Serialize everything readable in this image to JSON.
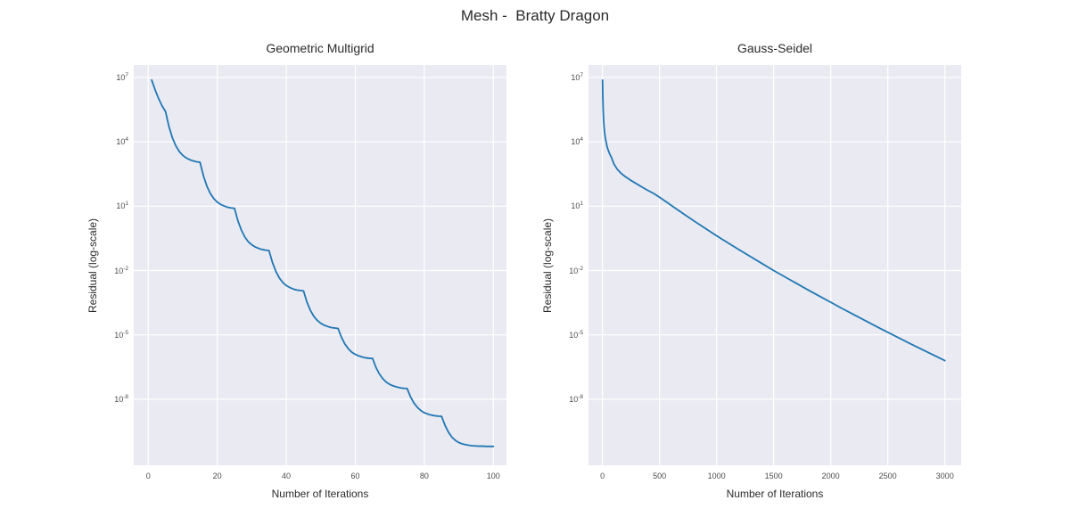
{
  "figure": {
    "title": "Mesh -  Bratty Dragon"
  },
  "style": {
    "figure_background": "#ffffff",
    "axes_background": "#eaeaf2",
    "grid_color": "#ffffff",
    "line_color": "#1f77b4",
    "title_color": "#2b2b2b",
    "tick_label_color": "#4c4c4c"
  },
  "chart_data": [
    {
      "type": "line",
      "title": "Geometric Multigrid",
      "xlabel": "Number of Iterations",
      "ylabel": "Residual (log-scale)",
      "y_scale": "log10",
      "y_units": "points are [iteration, log10(residual)]",
      "grid": true,
      "legend": false,
      "x_ticks": [
        0,
        20,
        40,
        60,
        80,
        100
      ],
      "y_tick_base": "10",
      "y_tick_exponents": [
        7,
        4,
        1,
        -2,
        -5,
        -8
      ],
      "xlim": [
        -4.2,
        103.8
      ],
      "ylim_log": [
        -11.08,
        7.58
      ],
      "series": [
        {
          "name": "residual",
          "points": [
            [
              1,
              6.88
            ],
            [
              2,
              6.42
            ],
            [
              3,
              6.02
            ],
            [
              4,
              5.68
            ],
            [
              5,
              5.42
            ],
            [
              6,
              4.71
            ],
            [
              7,
              4.19
            ],
            [
              8,
              3.81
            ],
            [
              9,
              3.55
            ],
            [
              10,
              3.37
            ],
            [
              11,
              3.25
            ],
            [
              12,
              3.17
            ],
            [
              13,
              3.11
            ],
            [
              14,
              3.07
            ],
            [
              15,
              3.05
            ],
            [
              16,
              2.41
            ],
            [
              17,
              1.93
            ],
            [
              18,
              1.59
            ],
            [
              19,
              1.35
            ],
            [
              20,
              1.19
            ],
            [
              21,
              1.08
            ],
            [
              22,
              1.01
            ],
            [
              23,
              0.95
            ],
            [
              24,
              0.92
            ],
            [
              25,
              0.9
            ],
            [
              26,
              0.31
            ],
            [
              27,
              -0.12
            ],
            [
              28,
              -0.44
            ],
            [
              29,
              -0.66
            ],
            [
              30,
              -0.8
            ],
            [
              31,
              -0.9
            ],
            [
              32,
              -0.97
            ],
            [
              33,
              -1.02
            ],
            [
              34,
              -1.05
            ],
            [
              35,
              -1.07
            ],
            [
              36,
              -1.63
            ],
            [
              37,
              -2.05
            ],
            [
              38,
              -2.35
            ],
            [
              39,
              -2.56
            ],
            [
              40,
              -2.7
            ],
            [
              41,
              -2.79
            ],
            [
              42,
              -2.86
            ],
            [
              43,
              -2.91
            ],
            [
              44,
              -2.93
            ],
            [
              45,
              -2.95
            ],
            [
              46,
              -3.48
            ],
            [
              47,
              -3.86
            ],
            [
              48,
              -4.14
            ],
            [
              49,
              -4.33
            ],
            [
              50,
              -4.46
            ],
            [
              51,
              -4.55
            ],
            [
              52,
              -4.61
            ],
            [
              53,
              -4.66
            ],
            [
              54,
              -4.68
            ],
            [
              55,
              -4.7
            ],
            [
              56,
              -5.12
            ],
            [
              57,
              -5.43
            ],
            [
              58,
              -5.65
            ],
            [
              59,
              -5.81
            ],
            [
              60,
              -5.91
            ],
            [
              61,
              -5.98
            ],
            [
              62,
              -6.03
            ],
            [
              63,
              -6.07
            ],
            [
              64,
              -6.09
            ],
            [
              65,
              -6.1
            ],
            [
              66,
              -6.52
            ],
            [
              67,
              -6.83
            ],
            [
              68,
              -7.05
            ],
            [
              69,
              -7.21
            ],
            [
              70,
              -7.31
            ],
            [
              71,
              -7.38
            ],
            [
              72,
              -7.43
            ],
            [
              73,
              -7.47
            ],
            [
              74,
              -7.49
            ],
            [
              75,
              -7.5
            ],
            [
              76,
              -7.89
            ],
            [
              77,
              -8.18
            ],
            [
              78,
              -8.38
            ],
            [
              79,
              -8.53
            ],
            [
              80,
              -8.63
            ],
            [
              81,
              -8.69
            ],
            [
              82,
              -8.74
            ],
            [
              83,
              -8.77
            ],
            [
              84,
              -8.79
            ],
            [
              85,
              -8.8
            ],
            [
              86,
              -9.22
            ],
            [
              87,
              -9.54
            ],
            [
              88,
              -9.77
            ],
            [
              89,
              -9.92
            ],
            [
              90,
              -10.02
            ],
            [
              91,
              -10.08
            ],
            [
              92,
              -10.12
            ],
            [
              93,
              -10.15
            ],
            [
              94,
              -10.17
            ],
            [
              95,
              -10.18
            ],
            [
              96,
              -10.19
            ],
            [
              97,
              -10.19
            ],
            [
              98,
              -10.2
            ],
            [
              99,
              -10.2
            ],
            [
              100,
              -10.2
            ]
          ]
        }
      ]
    },
    {
      "type": "line",
      "title": "Gauss-Seidel",
      "xlabel": "Number of Iterations",
      "ylabel": "Residual (log-scale)",
      "y_scale": "log10",
      "y_units": "points are [iteration, log10(residual)]",
      "grid": true,
      "legend": false,
      "x_ticks": [
        0,
        500,
        1000,
        1500,
        2000,
        2500,
        3000
      ],
      "y_tick_base": "10",
      "y_tick_exponents": [
        7,
        4,
        1,
        -2,
        -5,
        -8
      ],
      "xlim": [
        -122,
        3143
      ],
      "ylim_log": [
        -11.08,
        7.58
      ],
      "series": [
        {
          "name": "residual",
          "points": [
            [
              1,
              6.88
            ],
            [
              2,
              6.55
            ],
            [
              3,
              6.25
            ],
            [
              4,
              6.0
            ],
            [
              6,
              5.6
            ],
            [
              8,
              5.3
            ],
            [
              10,
              5.05
            ],
            [
              14,
              4.72
            ],
            [
              18,
              4.5
            ],
            [
              24,
              4.25
            ],
            [
              30,
              4.05
            ],
            [
              40,
              3.8
            ],
            [
              50,
              3.62
            ],
            [
              65,
              3.42
            ],
            [
              80,
              3.26
            ],
            [
              100,
              2.98
            ],
            [
              130,
              2.72
            ],
            [
              160,
              2.55
            ],
            [
              200,
              2.38
            ],
            [
              250,
              2.2
            ],
            [
              300,
              2.04
            ],
            [
              350,
              1.88
            ],
            [
              400,
              1.73
            ],
            [
              450,
              1.59
            ],
            [
              500,
              1.42
            ],
            [
              600,
              1.05
            ],
            [
              700,
              0.68
            ],
            [
              800,
              0.32
            ],
            [
              900,
              -0.03
            ],
            [
              1000,
              -0.38
            ],
            [
              1100,
              -0.71
            ],
            [
              1200,
              -1.04
            ],
            [
              1300,
              -1.36
            ],
            [
              1400,
              -1.68
            ],
            [
              1500,
              -2.0
            ],
            [
              1600,
              -2.3
            ],
            [
              1700,
              -2.6
            ],
            [
              1800,
              -2.9
            ],
            [
              1900,
              -3.19
            ],
            [
              2000,
              -3.48
            ],
            [
              2100,
              -3.77
            ],
            [
              2200,
              -4.05
            ],
            [
              2300,
              -4.33
            ],
            [
              2400,
              -4.61
            ],
            [
              2500,
              -4.88
            ],
            [
              2600,
              -5.15
            ],
            [
              2700,
              -5.42
            ],
            [
              2800,
              -5.68
            ],
            [
              2900,
              -5.94
            ],
            [
              3000,
              -6.2
            ]
          ]
        }
      ]
    }
  ]
}
